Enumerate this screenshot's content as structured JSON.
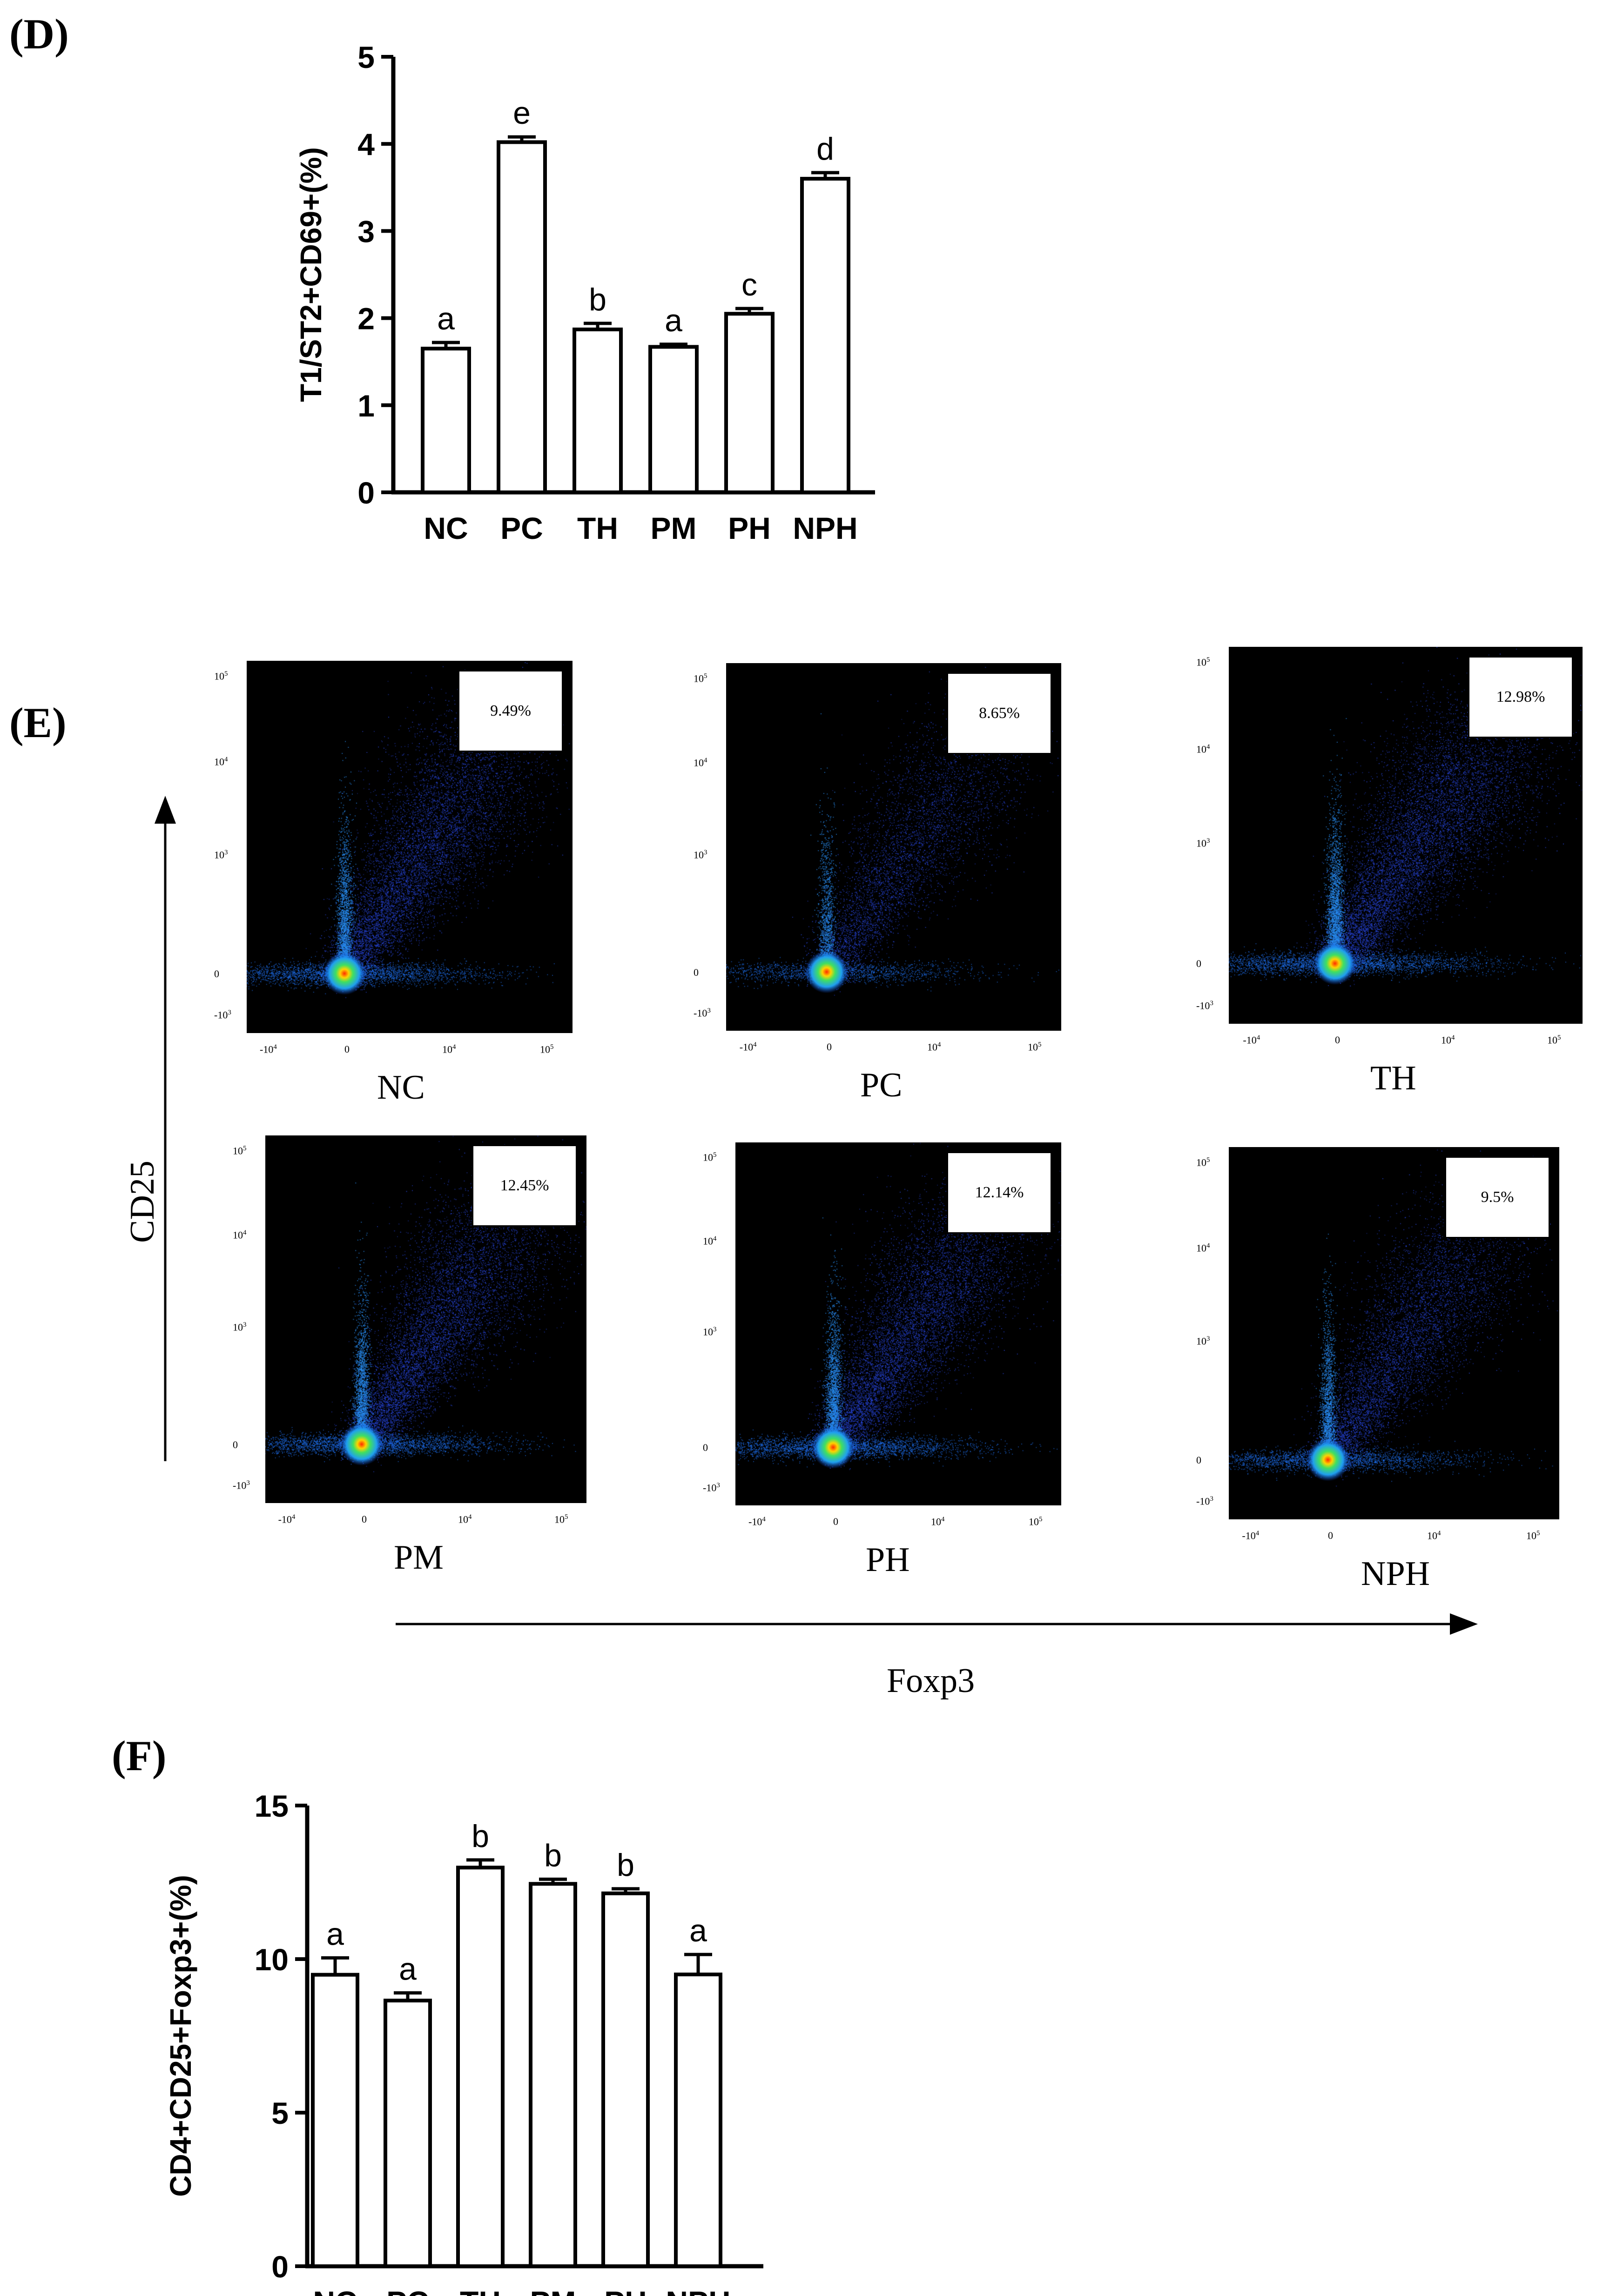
{
  "panel_labels": {
    "d": "(D)",
    "e": "(E)",
    "f": "(F)"
  },
  "chart_data": [
    {
      "type": "bar",
      "panel": "D",
      "categories": [
        "NC",
        "PC",
        "TH",
        "PM",
        "PH",
        "NPH"
      ],
      "values": [
        1.65,
        4.02,
        1.87,
        1.67,
        2.05,
        3.6
      ],
      "errors": [
        0.07,
        0.06,
        0.07,
        0.03,
        0.06,
        0.07
      ],
      "letters": [
        "a",
        "e",
        "b",
        "a",
        "c",
        "d"
      ],
      "ylabel": "T1/ST2+CD69+(%)",
      "ylim": [
        0,
        5
      ],
      "yticks": [
        "0",
        "1",
        "2",
        "3",
        "4",
        "5"
      ]
    },
    {
      "type": "bar",
      "panel": "F",
      "categories": [
        "NC",
        "PC",
        "TH",
        "PM",
        "PH",
        "NPH"
      ],
      "values": [
        9.49,
        8.65,
        12.98,
        12.45,
        12.14,
        9.5
      ],
      "errors": [
        0.55,
        0.25,
        0.25,
        0.15,
        0.15,
        0.65
      ],
      "letters": [
        "a",
        "a",
        "b",
        "b",
        "b",
        "a"
      ],
      "ylabel": "CD4+CD25+Foxp3+(%)",
      "ylim": [
        0,
        15
      ],
      "yticks": [
        "0",
        "5",
        "10",
        "15"
      ]
    }
  ],
  "flow_panel": {
    "y_axis_label": "CD25",
    "x_axis_label": "Foxp3",
    "plots": [
      {
        "group": "NC",
        "percent": "9.49%",
        "y_ticks": [
          "10",
          "10",
          "10",
          "0",
          "-10"
        ],
        "y_exps": [
          "5",
          "4",
          "3",
          "",
          "3"
        ],
        "x_ticks": [
          "-10",
          "0",
          "10",
          "10"
        ],
        "x_exps": [
          "4",
          "",
          "4",
          "5"
        ]
      },
      {
        "group": "PC",
        "percent": "8.65%",
        "y_ticks": [
          "10",
          "10",
          "10",
          "0",
          "-10"
        ],
        "y_exps": [
          "5",
          "4",
          "3",
          "",
          "3"
        ],
        "x_ticks": [
          "-10",
          "0",
          "10",
          "10"
        ],
        "x_exps": [
          "4",
          "",
          "4",
          "5"
        ]
      },
      {
        "group": "TH",
        "percent": "12.98%",
        "y_ticks": [
          "10",
          "10",
          "10",
          "0",
          "-10"
        ],
        "y_exps": [
          "5",
          "4",
          "3",
          "",
          "3"
        ],
        "x_ticks": [
          "-10",
          "0",
          "10",
          "10"
        ],
        "x_exps": [
          "4",
          "",
          "4",
          "5"
        ]
      },
      {
        "group": "PM",
        "percent": "12.45%",
        "y_ticks": [
          "10",
          "10",
          "10",
          "0",
          "-10"
        ],
        "y_exps": [
          "5",
          "4",
          "3",
          "",
          "3"
        ],
        "x_ticks": [
          "-10",
          "0",
          "10",
          "10"
        ],
        "x_exps": [
          "4",
          "",
          "4",
          "5"
        ]
      },
      {
        "group": "PH",
        "percent": "12.14%",
        "y_ticks": [
          "10",
          "10",
          "10",
          "0",
          "-10"
        ],
        "y_exps": [
          "5",
          "4",
          "3",
          "",
          "3"
        ],
        "x_ticks": [
          "-10",
          "0",
          "10",
          "10"
        ],
        "x_exps": [
          "4",
          "",
          "4",
          "5"
        ]
      },
      {
        "group": "NPH",
        "percent": "9.5%",
        "y_ticks": [
          "10",
          "10",
          "10",
          "0",
          "-10"
        ],
        "y_exps": [
          "5",
          "4",
          "3",
          "",
          "3"
        ],
        "x_ticks": [
          "-10",
          "0",
          "10",
          "10"
        ],
        "x_exps": [
          "4",
          "",
          "4",
          "5"
        ]
      }
    ]
  },
  "colors": {
    "bar_fill": "#ffffff",
    "bar_stroke": "#000000",
    "plot_bg": "#000000",
    "dot": "#2a3fd6"
  }
}
